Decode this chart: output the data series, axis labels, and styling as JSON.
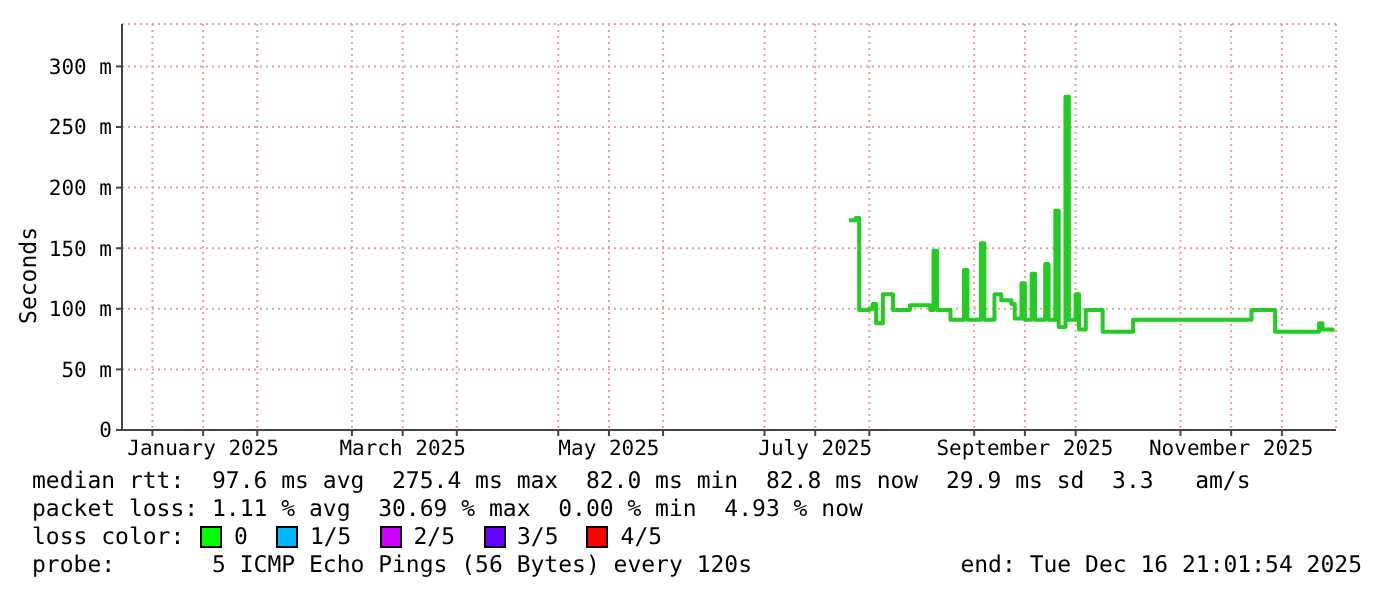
{
  "chart_data": {
    "type": "step",
    "ylabel": "Seconds",
    "x": [
      "2025-07-26",
      "2025-07-28",
      "2025-07-29",
      "2025-08-01",
      "2025-08-02",
      "2025-08-03",
      "2025-08-05",
      "2025-08-08",
      "2025-08-13",
      "2025-08-19",
      "2025-08-20",
      "2025-08-21",
      "2025-08-25",
      "2025-08-29",
      "2025-08-30",
      "2025-09-03",
      "2025-09-04",
      "2025-09-07",
      "2025-09-09",
      "2025-09-12",
      "2025-09-13",
      "2025-09-15",
      "2025-09-16",
      "2025-09-18",
      "2025-09-19",
      "2025-09-22",
      "2025-09-23",
      "2025-09-25",
      "2025-09-26",
      "2025-09-28",
      "2025-09-29",
      "2025-10-01",
      "2025-10-02",
      "2025-10-04",
      "2025-10-08",
      "2025-10-09",
      "2025-10-17",
      "2025-10-18",
      "2025-11-21",
      "2025-11-22",
      "2025-11-28",
      "2025-11-29",
      "2025-12-11",
      "2025-12-12",
      "2025-12-13",
      "2025-12-16"
    ],
    "series": [
      {
        "color": "#22cc22",
        "values": [
          173,
          175,
          99,
          100,
          104,
          88,
          112,
          99,
          103,
          99,
          148,
          99,
          91,
          132,
          91,
          154,
          91,
          112,
          107,
          104,
          92,
          121,
          91,
          129,
          91,
          137,
          91,
          181,
          85,
          275,
          91,
          112,
          83,
          99,
          99,
          81,
          81,
          91,
          91,
          99,
          99,
          81,
          81,
          88,
          83,
          81
        ]
      }
    ],
    "xlim": [
      "2024-12-23",
      "2025-12-17"
    ],
    "xticks": [
      {
        "value": "2025-01-01",
        "label": null
      },
      {
        "value": "2025-01-16",
        "label": "January 2025"
      },
      {
        "value": "2025-02-01",
        "label": null
      },
      {
        "value": "2025-03-01",
        "label": null
      },
      {
        "value": "2025-03-16",
        "label": "March 2025"
      },
      {
        "value": "2025-04-01",
        "label": null
      },
      {
        "value": "2025-05-01",
        "label": null
      },
      {
        "value": "2025-05-16",
        "label": "May 2025"
      },
      {
        "value": "2025-06-01",
        "label": null
      },
      {
        "value": "2025-07-01",
        "label": null
      },
      {
        "value": "2025-07-16",
        "label": "July 2025"
      },
      {
        "value": "2025-08-01",
        "label": null
      },
      {
        "value": "2025-09-01",
        "label": null
      },
      {
        "value": "2025-09-16",
        "label": "September 2025"
      },
      {
        "value": "2025-10-01",
        "label": null
      },
      {
        "value": "2025-11-01",
        "label": null
      },
      {
        "value": "2025-11-16",
        "label": "November 2025"
      },
      {
        "value": "2025-12-01",
        "label": null
      }
    ],
    "ylim": [
      0,
      335
    ],
    "yticks": [
      0,
      {
        "value": 50,
        "label": "50 m"
      },
      {
        "value": 100,
        "label": "100 m"
      },
      {
        "value": 150,
        "label": "150 m"
      },
      {
        "value": 200,
        "label": "200 m"
      },
      {
        "value": 250,
        "label": "250 m"
      },
      {
        "value": 300,
        "label": "300 m"
      }
    ],
    "grid": true,
    "annotations": [
      "median rtt:  97.6 ms avg  275.4 ms max  82.0 ms min  82.8 ms now  29.9 ms sd  3.3   am/s",
      "packet loss: 1.11 % avg  30.69 % max  0.00 % min  4.93 % now",
      "loss color:",
      "0",
      "1/5",
      "2/5",
      "3/5",
      "4/5",
      "probe:       5 ICMP Echo Pings (56 Bytes) every 120s",
      "end: Tue Dec 16 21:01:54 2025"
    ]
  }
}
